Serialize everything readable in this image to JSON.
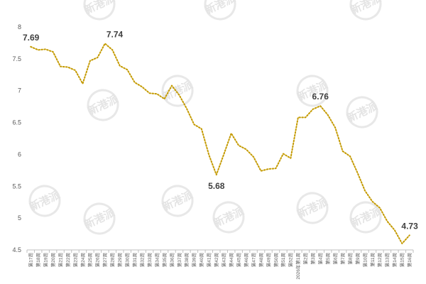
{
  "watermark": {
    "text": "新港派",
    "color": "#d9d9d9"
  },
  "chart_data": {
    "type": "line",
    "title": "",
    "xlabel": "",
    "ylabel": "",
    "ylim": [
      4.5,
      8
    ],
    "yticks": [
      4.5,
      5,
      5.5,
      6,
      6.5,
      7,
      7.5,
      8
    ],
    "grid": false,
    "legend": "none",
    "line_color": "#c49a00",
    "line_style": "dotted",
    "categories": [
      "第17周",
      "第18周",
      "第19周",
      "第20周",
      "第21周",
      "第22周",
      "第23周",
      "第24周",
      "第25周",
      "第26周",
      "第27周",
      "第28周",
      "第29周",
      "第30周",
      "第31周",
      "第32周",
      "第33周",
      "第34周",
      "第35周",
      "第36周",
      "第37周",
      "第38周",
      "第39周",
      "第40周",
      "第41周",
      "第42周",
      "第43周",
      "第44周",
      "第45周",
      "第46周",
      "第47周",
      "第48周",
      "第49周",
      "第50周",
      "第51周",
      "第52周",
      "2026年第1周",
      "第2周",
      "第3周",
      "第4周",
      "第5周",
      "第6周",
      "第7周",
      "第8周",
      "第9周",
      "第10周",
      "第11周",
      "第12周",
      "第13周",
      "第14周",
      "第15周",
      "第16周"
    ],
    "series": [
      {
        "values": [
          7.69,
          7.64,
          7.65,
          7.61,
          7.38,
          7.37,
          7.32,
          7.11,
          7.47,
          7.52,
          7.74,
          7.64,
          7.39,
          7.33,
          7.13,
          7.06,
          6.96,
          6.95,
          6.87,
          7.08,
          6.93,
          6.72,
          6.47,
          6.4,
          5.99,
          5.68,
          6.0,
          6.33,
          6.14,
          6.08,
          5.96,
          5.74,
          5.77,
          5.78,
          6.01,
          5.94,
          6.58,
          6.58,
          6.71,
          6.76,
          6.62,
          6.42,
          6.05,
          5.97,
          5.71,
          5.43,
          5.26,
          5.16,
          4.95,
          4.81,
          4.6,
          4.73
        ]
      }
    ],
    "callouts": [
      {
        "index": 0,
        "text": "7.69",
        "anchor": "above"
      },
      {
        "index": 10,
        "text": "7.74",
        "anchor": "above-right"
      },
      {
        "index": 25,
        "text": "5.68",
        "anchor": "below"
      },
      {
        "index": 39,
        "text": "6.76",
        "anchor": "above"
      },
      {
        "index": 51,
        "text": "4.73",
        "anchor": "above"
      }
    ]
  }
}
